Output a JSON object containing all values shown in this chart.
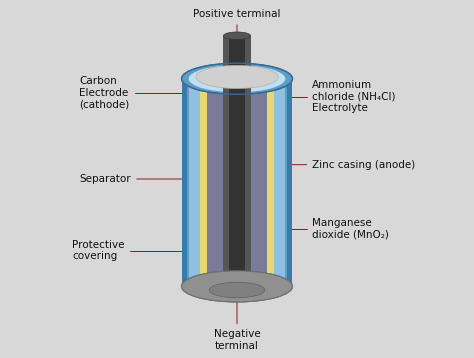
{
  "background_color": "#d8d8d8",
  "title": "",
  "labels": {
    "positive_terminal": "Positive terminal",
    "negative_terminal": "Negative\nterminal",
    "carbon_electrode": "Carbon\nElectrode\n(cathode)",
    "ammonium_chloride": "Ammonium\nchloride (NH₄Cl)\nElectrolyte",
    "separator": "Separator",
    "zinc_casing": "Zinc casing (anode)",
    "protective_covering": "Protective\ncovering",
    "manganese_dioxide": "Manganese\ndioxide (MnO₂)"
  },
  "colors": {
    "bg": "#d8d8d8",
    "outer_casing": "#4a90c4",
    "outer_casing_dark": "#2a6090",
    "inner_fill": "#7ab0d4",
    "separator_color": "#e8d870",
    "carbon_rod": "#505050",
    "carbon_rod_dark": "#303030",
    "mno2_fill": "#8888aa",
    "bottom_cap": "#909090",
    "top_cap": "#e0e0e0",
    "annotation_line": "#8b1a1a",
    "label_color": "#111111",
    "white_top": "#d0d0d0"
  }
}
